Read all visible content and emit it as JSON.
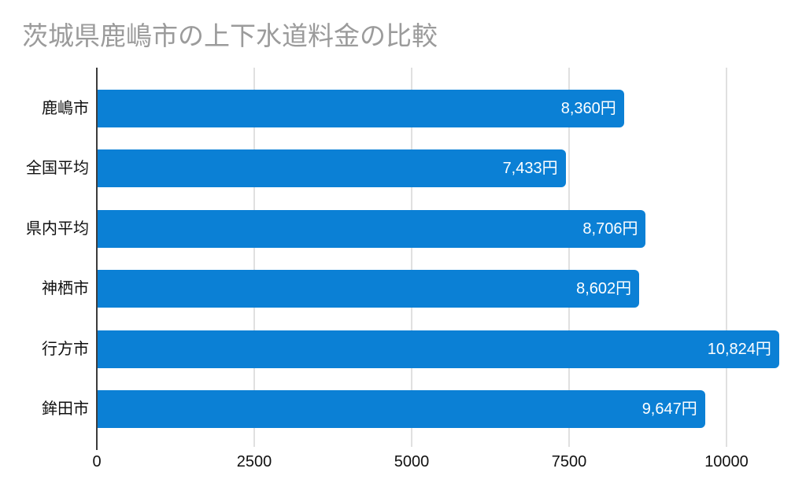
{
  "page": {
    "background_color": "#ffffff"
  },
  "header": {
    "title": "茨城県鹿嶋市の上下水道料金の比較",
    "title_color": "#9b9b9b"
  },
  "chart_data": {
    "type": "bar",
    "orientation": "horizontal",
    "title": "茨城県鹿嶋市の上下水道料金の比較",
    "categories": [
      "鹿嶋市",
      "全国平均",
      "県内平均",
      "神栖市",
      "行方市",
      "鉾田市"
    ],
    "values": [
      8360,
      7433,
      8706,
      8602,
      10824,
      9647
    ],
    "value_labels": [
      "8,360円",
      "7,433円",
      "8,706円",
      "8,602円",
      "10,824円",
      "9,647円"
    ],
    "xlabel": "",
    "ylabel": "",
    "xlim": [
      0,
      11000
    ],
    "x_ticks": [
      0,
      2500,
      5000,
      7500,
      10000
    ],
    "x_tick_labels": [
      "0",
      "2500",
      "5000",
      "7500",
      "10000"
    ],
    "grid": true,
    "legend": false,
    "bar_color": "#0b80d5",
    "value_label_color": "#ffffff",
    "axis_line_color": "#3c3c3c",
    "gridline_color": "#e0e0e0",
    "tick_label_color": "#111111",
    "category_label_color": "#111111"
  }
}
